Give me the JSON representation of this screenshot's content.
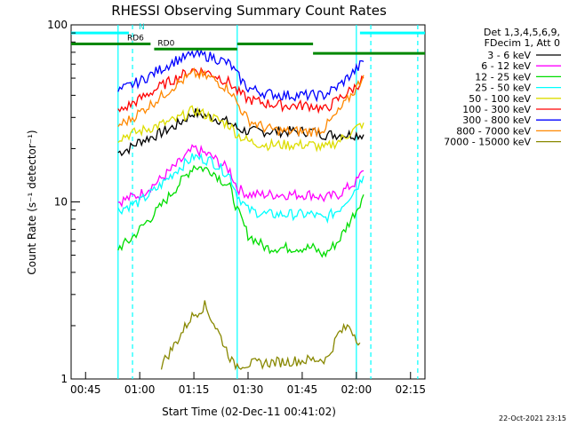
{
  "chart_data": {
    "type": "line",
    "title": "RHESSI Observing Summary Count Rates",
    "xlabel": "Start Time (02-Dec-11 00:41:02)",
    "ylabel": "Count Rate (s⁻¹ detector⁻¹)",
    "y_scale": "log",
    "ylim": [
      1,
      100
    ],
    "xlim": [
      "00:41",
      "02:19"
    ],
    "x_ticks": [
      "00:45",
      "01:00",
      "01:15",
      "01:30",
      "01:45",
      "02:00",
      "02:15"
    ],
    "y_ticks": [
      "1",
      "10",
      "100"
    ],
    "legend_header": [
      "Det 1,3,4,5,6,9,",
      "FDecim 1, Att 0"
    ],
    "legend_position": "right",
    "timestamp": "22-Oct-2021 23:15",
    "series": [
      {
        "name": "3 - 6 keV",
        "color": "#000000",
        "x": [
          "00:54",
          "00:57",
          "01:00",
          "01:05",
          "01:10",
          "01:15",
          "01:20",
          "01:25",
          "01:27",
          "01:30",
          "01:35",
          "01:40",
          "01:45",
          "01:48",
          "01:51",
          "01:55",
          "02:00",
          "02:02"
        ],
        "values": [
          19,
          20,
          22,
          24,
          27,
          32,
          30,
          28,
          26,
          25,
          25,
          25,
          25,
          25,
          24,
          24,
          24,
          24
        ]
      },
      {
        "name": "6 - 12 keV",
        "color": "#ff00ff",
        "x": [
          "00:54",
          "00:57",
          "01:00",
          "01:05",
          "01:10",
          "01:15",
          "01:20",
          "01:25",
          "01:27",
          "01:30",
          "01:35",
          "01:40",
          "01:45",
          "01:48",
          "01:51",
          "01:55",
          "02:00",
          "02:02"
        ],
        "values": [
          10,
          10.5,
          11,
          13,
          16,
          20,
          18,
          15,
          12,
          11,
          11,
          11,
          11,
          11,
          10.5,
          11,
          13,
          15
        ]
      },
      {
        "name": "12 - 25 keV",
        "color": "#00dd00",
        "x": [
          "00:54",
          "00:57",
          "01:00",
          "01:05",
          "01:10",
          "01:15",
          "01:20",
          "01:25",
          "01:27",
          "01:30",
          "01:35",
          "01:40",
          "01:45",
          "01:48",
          "01:51",
          "01:55",
          "02:00",
          "02:02"
        ],
        "values": [
          5.5,
          6,
          7,
          9,
          12,
          16,
          15,
          12,
          9,
          6.5,
          5.5,
          5.5,
          5.5,
          5.5,
          5,
          6,
          9,
          11
        ]
      },
      {
        "name": "25 - 50 keV",
        "color": "#00ffff",
        "x": [
          "00:54",
          "00:57",
          "01:00",
          "01:05",
          "01:10",
          "01:15",
          "01:20",
          "01:25",
          "01:27",
          "01:30",
          "01:35",
          "01:40",
          "01:45",
          "01:48",
          "01:51",
          "01:55",
          "02:00",
          "02:02"
        ],
        "values": [
          9,
          9.5,
          10,
          12,
          15,
          18,
          17,
          14,
          11,
          9,
          8.5,
          8.5,
          8.5,
          8.5,
          8,
          9,
          12,
          14
        ]
      },
      {
        "name": "50 - 100 keV",
        "color": "#dddd00",
        "x": [
          "00:54",
          "00:57",
          "01:00",
          "01:05",
          "01:10",
          "01:15",
          "01:20",
          "01:25",
          "01:27",
          "01:30",
          "01:35",
          "01:40",
          "01:45",
          "01:48",
          "01:51",
          "01:55",
          "02:00",
          "02:02"
        ],
        "values": [
          23,
          24,
          25,
          27,
          29,
          33,
          30,
          27,
          24,
          22,
          21,
          21,
          21,
          21,
          20,
          22,
          26,
          28
        ]
      },
      {
        "name": "100 - 300 keV",
        "color": "#ff0000",
        "x": [
          "00:54",
          "00:57",
          "01:00",
          "01:05",
          "01:10",
          "01:15",
          "01:20",
          "01:25",
          "01:27",
          "01:30",
          "01:35",
          "01:40",
          "01:45",
          "01:48",
          "01:51",
          "01:55",
          "02:00",
          "02:02"
        ],
        "values": [
          32,
          35,
          38,
          44,
          50,
          56,
          53,
          47,
          42,
          38,
          36,
          35,
          35,
          35,
          33,
          38,
          45,
          50
        ]
      },
      {
        "name": "300 - 800 keV",
        "color": "#0000ff",
        "x": [
          "00:54",
          "00:57",
          "01:00",
          "01:05",
          "01:10",
          "01:15",
          "01:20",
          "01:25",
          "01:27",
          "01:30",
          "01:35",
          "01:40",
          "01:45",
          "01:48",
          "01:51",
          "01:55",
          "02:00",
          "02:02"
        ],
        "values": [
          42,
          45,
          48,
          55,
          63,
          68,
          66,
          60,
          52,
          44,
          41,
          40,
          40,
          40,
          40,
          45,
          56,
          62
        ]
      },
      {
        "name": "800 - 7000 keV",
        "color": "#ff8800",
        "x": [
          "00:54",
          "00:57",
          "01:00",
          "01:05",
          "01:10",
          "01:15",
          "01:20",
          "01:25",
          "01:27",
          "01:30",
          "01:35",
          "01:40",
          "01:45",
          "01:48",
          "01:51",
          "01:55",
          "02:00",
          "02:02"
        ],
        "values": [
          27,
          29,
          32,
          38,
          46,
          53,
          50,
          43,
          36,
          29,
          26,
          25,
          25,
          25,
          26,
          32,
          44,
          52
        ]
      },
      {
        "name": "7000 - 15000 keV",
        "color": "#888800",
        "x": [
          "01:06",
          "01:10",
          "01:14",
          "01:18",
          "01:22",
          "01:26",
          "01:52",
          "01:55",
          "01:58",
          "02:01"
        ],
        "values": [
          1.2,
          1.6,
          2.2,
          2.6,
          1.8,
          1.2,
          1.3,
          1.8,
          2,
          1.6
        ]
      }
    ],
    "annotations": [
      {
        "label": "N",
        "color": "#00ffff",
        "x_start": "00:41",
        "x_end": "00:57",
        "y": 90
      },
      {
        "label": "",
        "color": "#00ffff",
        "x_start": "02:01",
        "x_end": "02:19",
        "y": 90
      },
      {
        "label": "RD0",
        "color": "#008800",
        "x_start": "01:04",
        "x_end": "01:27",
        "y": 73
      },
      {
        "label": "RD6",
        "color": "#008800",
        "x_start": "00:41",
        "x_end": "01:03",
        "y": 78
      },
      {
        "label": "",
        "color": "#008800",
        "x_start": "01:27",
        "x_end": "01:48",
        "y": 78
      },
      {
        "label": "",
        "color": "#008800",
        "x_start": "01:48",
        "x_end": "02:19",
        "y": 69
      }
    ],
    "vertical_lines": [
      {
        "x": "00:54",
        "style": "solid",
        "color": "#00ffff"
      },
      {
        "x": "00:58",
        "style": "dashed",
        "color": "#00ffff"
      },
      {
        "x": "01:27",
        "style": "solid",
        "color": "#00ffff"
      },
      {
        "x": "02:00",
        "style": "solid",
        "color": "#00ffff"
      },
      {
        "x": "02:04",
        "style": "dashed",
        "color": "#00ffff"
      },
      {
        "x": "02:17",
        "style": "dashed",
        "color": "#00ffff"
      }
    ]
  }
}
